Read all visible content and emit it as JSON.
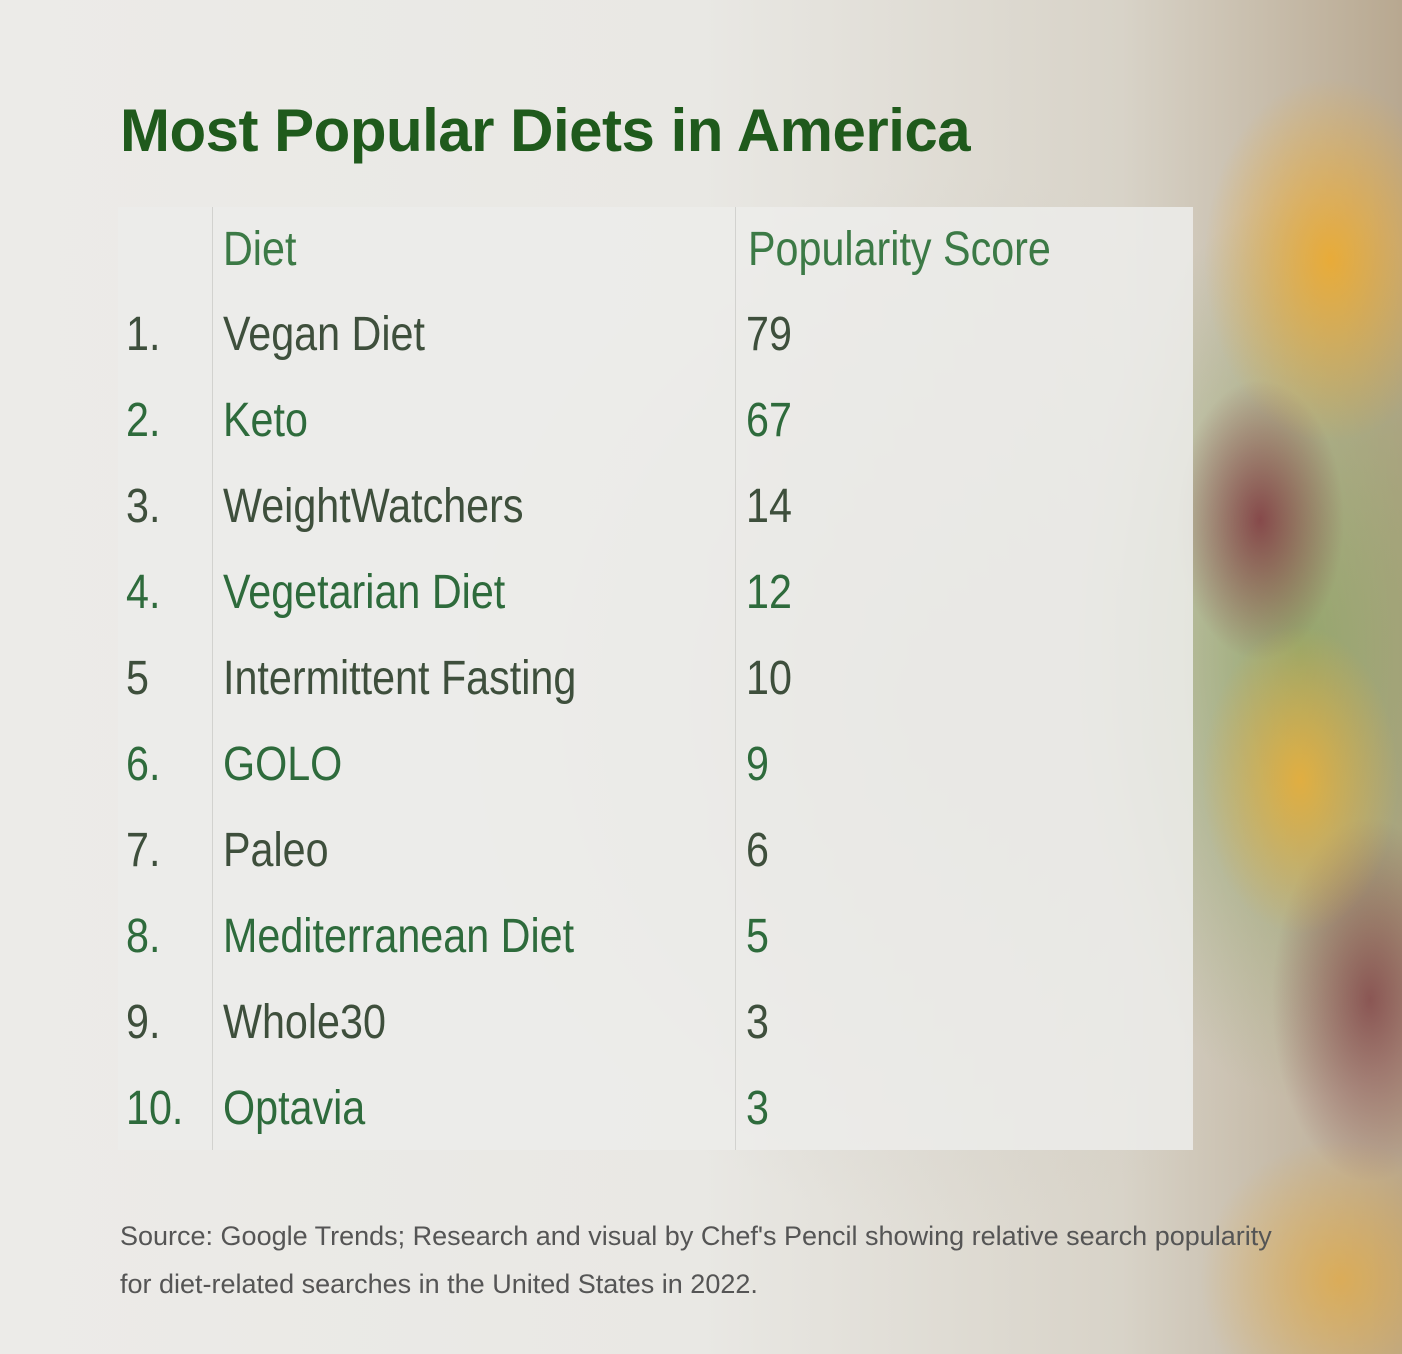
{
  "title": "Most Popular Diets in America",
  "chart_data": {
    "type": "table",
    "title": "Most Popular Diets in America",
    "columns": [
      "",
      "Diet",
      "Popularity Score"
    ],
    "rows": [
      {
        "rank": "1.",
        "diet": "Vegan Diet",
        "score": "79"
      },
      {
        "rank": "2.",
        "diet": "Keto",
        "score": "67"
      },
      {
        "rank": "3.",
        "diet": "WeightWatchers",
        "score": "14"
      },
      {
        "rank": "4.",
        "diet": "Vegetarian Diet",
        "score": "12"
      },
      {
        "rank": "5",
        "diet": "Intermittent Fasting",
        "score": "10"
      },
      {
        "rank": "6.",
        "diet": "GOLO",
        "score": "9"
      },
      {
        "rank": "7.",
        "diet": "Paleo",
        "score": "6"
      },
      {
        "rank": "8.",
        "diet": "Mediterranean Diet",
        "score": "5"
      },
      {
        "rank": "9.",
        "diet": "Whole30",
        "score": "3"
      },
      {
        "rank": "10.",
        "diet": "Optavia",
        "score": "3"
      }
    ]
  },
  "source": "Source: Google Trends; Research and visual by Chef's Pencil showing relative search popularity for diet-related searches in the United States in 2022.",
  "colors": {
    "title": "#1f5a1c",
    "row_odd": "#3e4f3c",
    "row_even": "#2e6b3c",
    "header": "#3c7a46"
  }
}
